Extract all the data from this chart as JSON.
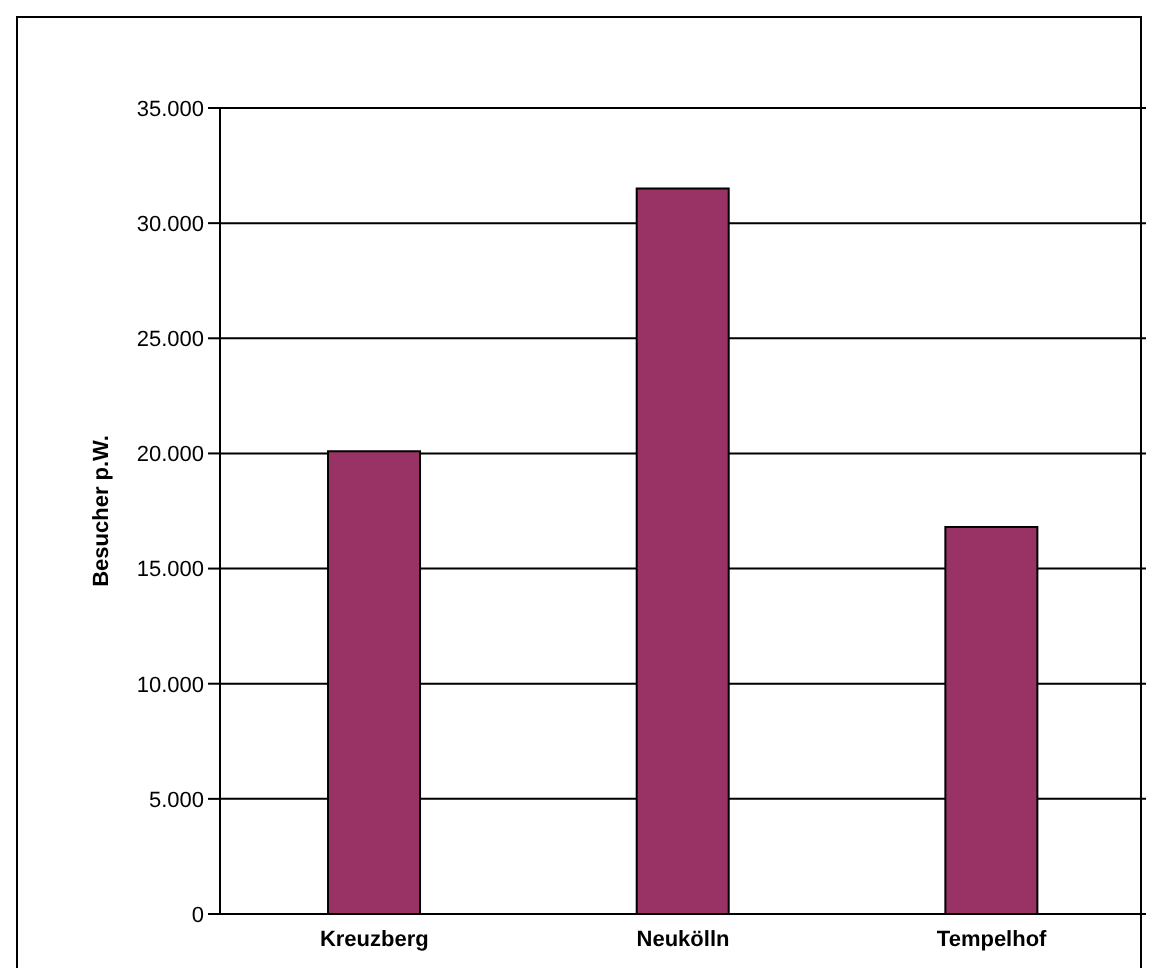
{
  "chart_data": {
    "type": "bar",
    "ylabel": "Besucher p.W.",
    "categories": [
      "Kreuzberg",
      "Neukölln",
      "Tempelhof"
    ],
    "values": [
      20100,
      31500,
      16800
    ],
    "color": "#993366",
    "ylim": [
      0,
      35000
    ],
    "yticks": [
      {
        "value": 0,
        "label": "0"
      },
      {
        "value": 5000,
        "label": "5.000"
      },
      {
        "value": 10000,
        "label": "10.000"
      },
      {
        "value": 15000,
        "label": "15.000"
      },
      {
        "value": 20000,
        "label": "20.000"
      },
      {
        "value": 25000,
        "label": "25.000"
      },
      {
        "value": 30000,
        "label": "30.000"
      },
      {
        "value": 35000,
        "label": "35.000"
      }
    ],
    "grid": "y"
  }
}
